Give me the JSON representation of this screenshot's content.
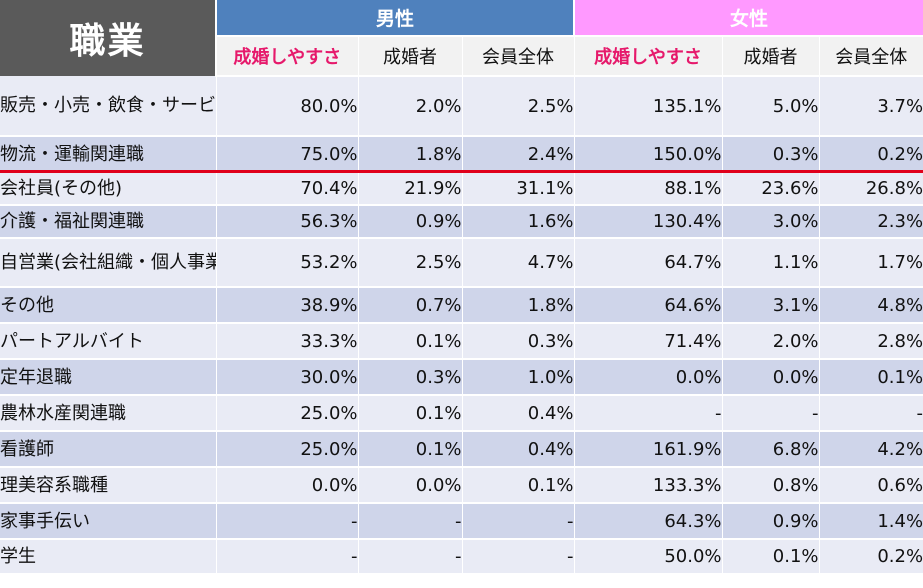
{
  "header": {
    "corner_label": "職業",
    "male_label": "男性",
    "female_label": "女性",
    "columns": [
      "成婚しやすさ",
      "成婚者",
      "会員全体",
      "成婚しやすさ",
      "成婚者",
      "会員全体"
    ]
  },
  "rows": [
    {
      "label": "販売・小売・飲食・サービス系職種",
      "values": [
        "80.0%",
        "2.0%",
        "2.5%",
        "135.1%",
        "5.0%",
        "3.7%"
      ]
    },
    {
      "label": "物流・運輸関連職",
      "values": [
        "75.0%",
        "1.8%",
        "2.4%",
        "150.0%",
        "0.3%",
        "0.2%"
      ]
    },
    {
      "label": "会社員(その他)",
      "values": [
        "70.4%",
        "21.9%",
        "31.1%",
        "88.1%",
        "23.6%",
        "26.8%"
      ]
    },
    {
      "label": "介護・福祉関連職",
      "values": [
        "56.3%",
        "0.9%",
        "1.6%",
        "130.4%",
        "3.0%",
        "2.3%"
      ]
    },
    {
      "label": "自営業(会社組織・個人事業)",
      "values": [
        "53.2%",
        "2.5%",
        "4.7%",
        "64.7%",
        "1.1%",
        "1.7%"
      ]
    },
    {
      "label": "その他",
      "values": [
        "38.9%",
        "0.7%",
        "1.8%",
        "64.6%",
        "3.1%",
        "4.8%"
      ]
    },
    {
      "label": "パートアルバイト",
      "values": [
        "33.3%",
        "0.1%",
        "0.3%",
        "71.4%",
        "2.0%",
        "2.8%"
      ]
    },
    {
      "label": "定年退職",
      "values": [
        "30.0%",
        "0.3%",
        "1.0%",
        "0.0%",
        "0.0%",
        "0.1%"
      ]
    },
    {
      "label": "農林水産関連職",
      "values": [
        "25.0%",
        "0.1%",
        "0.4%",
        "-",
        "-",
        "-"
      ]
    },
    {
      "label": "看護師",
      "values": [
        "25.0%",
        "0.1%",
        "0.4%",
        "161.9%",
        "6.8%",
        "4.2%"
      ]
    },
    {
      "label": "理美容系職種",
      "values": [
        "0.0%",
        "0.0%",
        "0.1%",
        "133.3%",
        "0.8%",
        "0.6%"
      ]
    },
    {
      "label": "家事手伝い",
      "values": [
        "-",
        "-",
        "-",
        "64.3%",
        "0.9%",
        "1.4%"
      ]
    },
    {
      "label": "学生",
      "values": [
        "-",
        "-",
        "-",
        "50.0%",
        "0.1%",
        "0.2%"
      ]
    }
  ],
  "colors": {
    "corner_bg": "#5a5a5a",
    "male_bg": "#4f81bd",
    "female_bg": "#ff99ff",
    "highlight_text": "#e6196b",
    "row_light": "#e9ebf5",
    "row_dark": "#cfd5ea",
    "underline": "#e0001b"
  }
}
